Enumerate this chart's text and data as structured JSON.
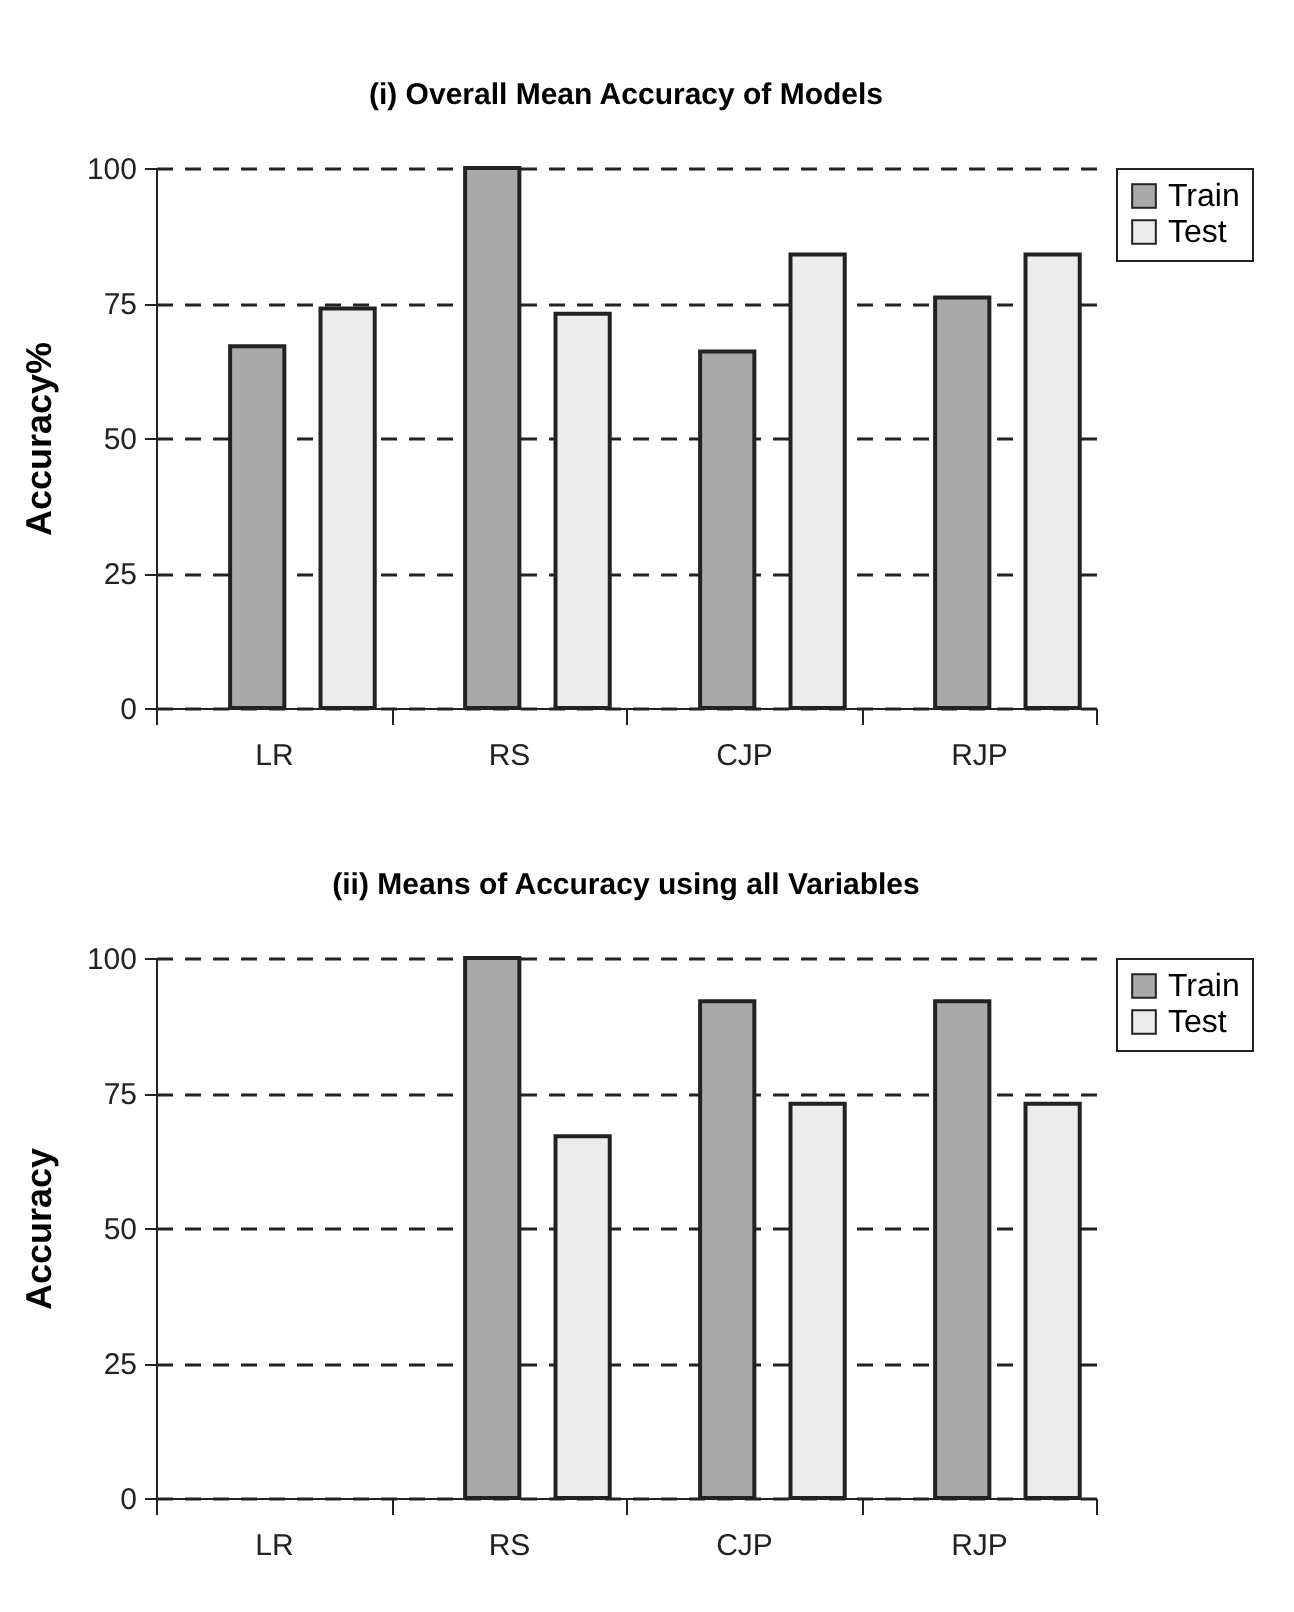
{
  "chart_data": [
    {
      "type": "bar",
      "title": "(i) Overall Mean Accuracy of Models",
      "ylabel": "Accuracy%",
      "categories": [
        "LR",
        "RS",
        "CJP",
        "RJP"
      ],
      "series": [
        {
          "name": "Train",
          "color": "#a9a9a9",
          "values": [
            67,
            100,
            66,
            76
          ]
        },
        {
          "name": "Test",
          "color": "#ececec",
          "values": [
            74,
            73,
            84,
            84
          ]
        }
      ],
      "ylim": [
        0,
        100
      ],
      "yticks": [
        0,
        25,
        50,
        75,
        100
      ],
      "grid": "y",
      "legend": "right"
    },
    {
      "type": "bar",
      "title": "(ii) Means of Accuracy using all  Variables",
      "ylabel": "Accuracy",
      "categories": [
        "LR",
        "RS",
        "CJP",
        "RJP"
      ],
      "series": [
        {
          "name": "Train",
          "color": "#a9a9a9",
          "values": [
            null,
            100,
            92,
            92
          ]
        },
        {
          "name": "Test",
          "color": "#ececec",
          "values": [
            null,
            67,
            73,
            73
          ]
        }
      ],
      "ylim": [
        0,
        100
      ],
      "yticks": [
        0,
        25,
        50,
        75,
        100
      ],
      "grid": "y",
      "legend": "right"
    }
  ]
}
